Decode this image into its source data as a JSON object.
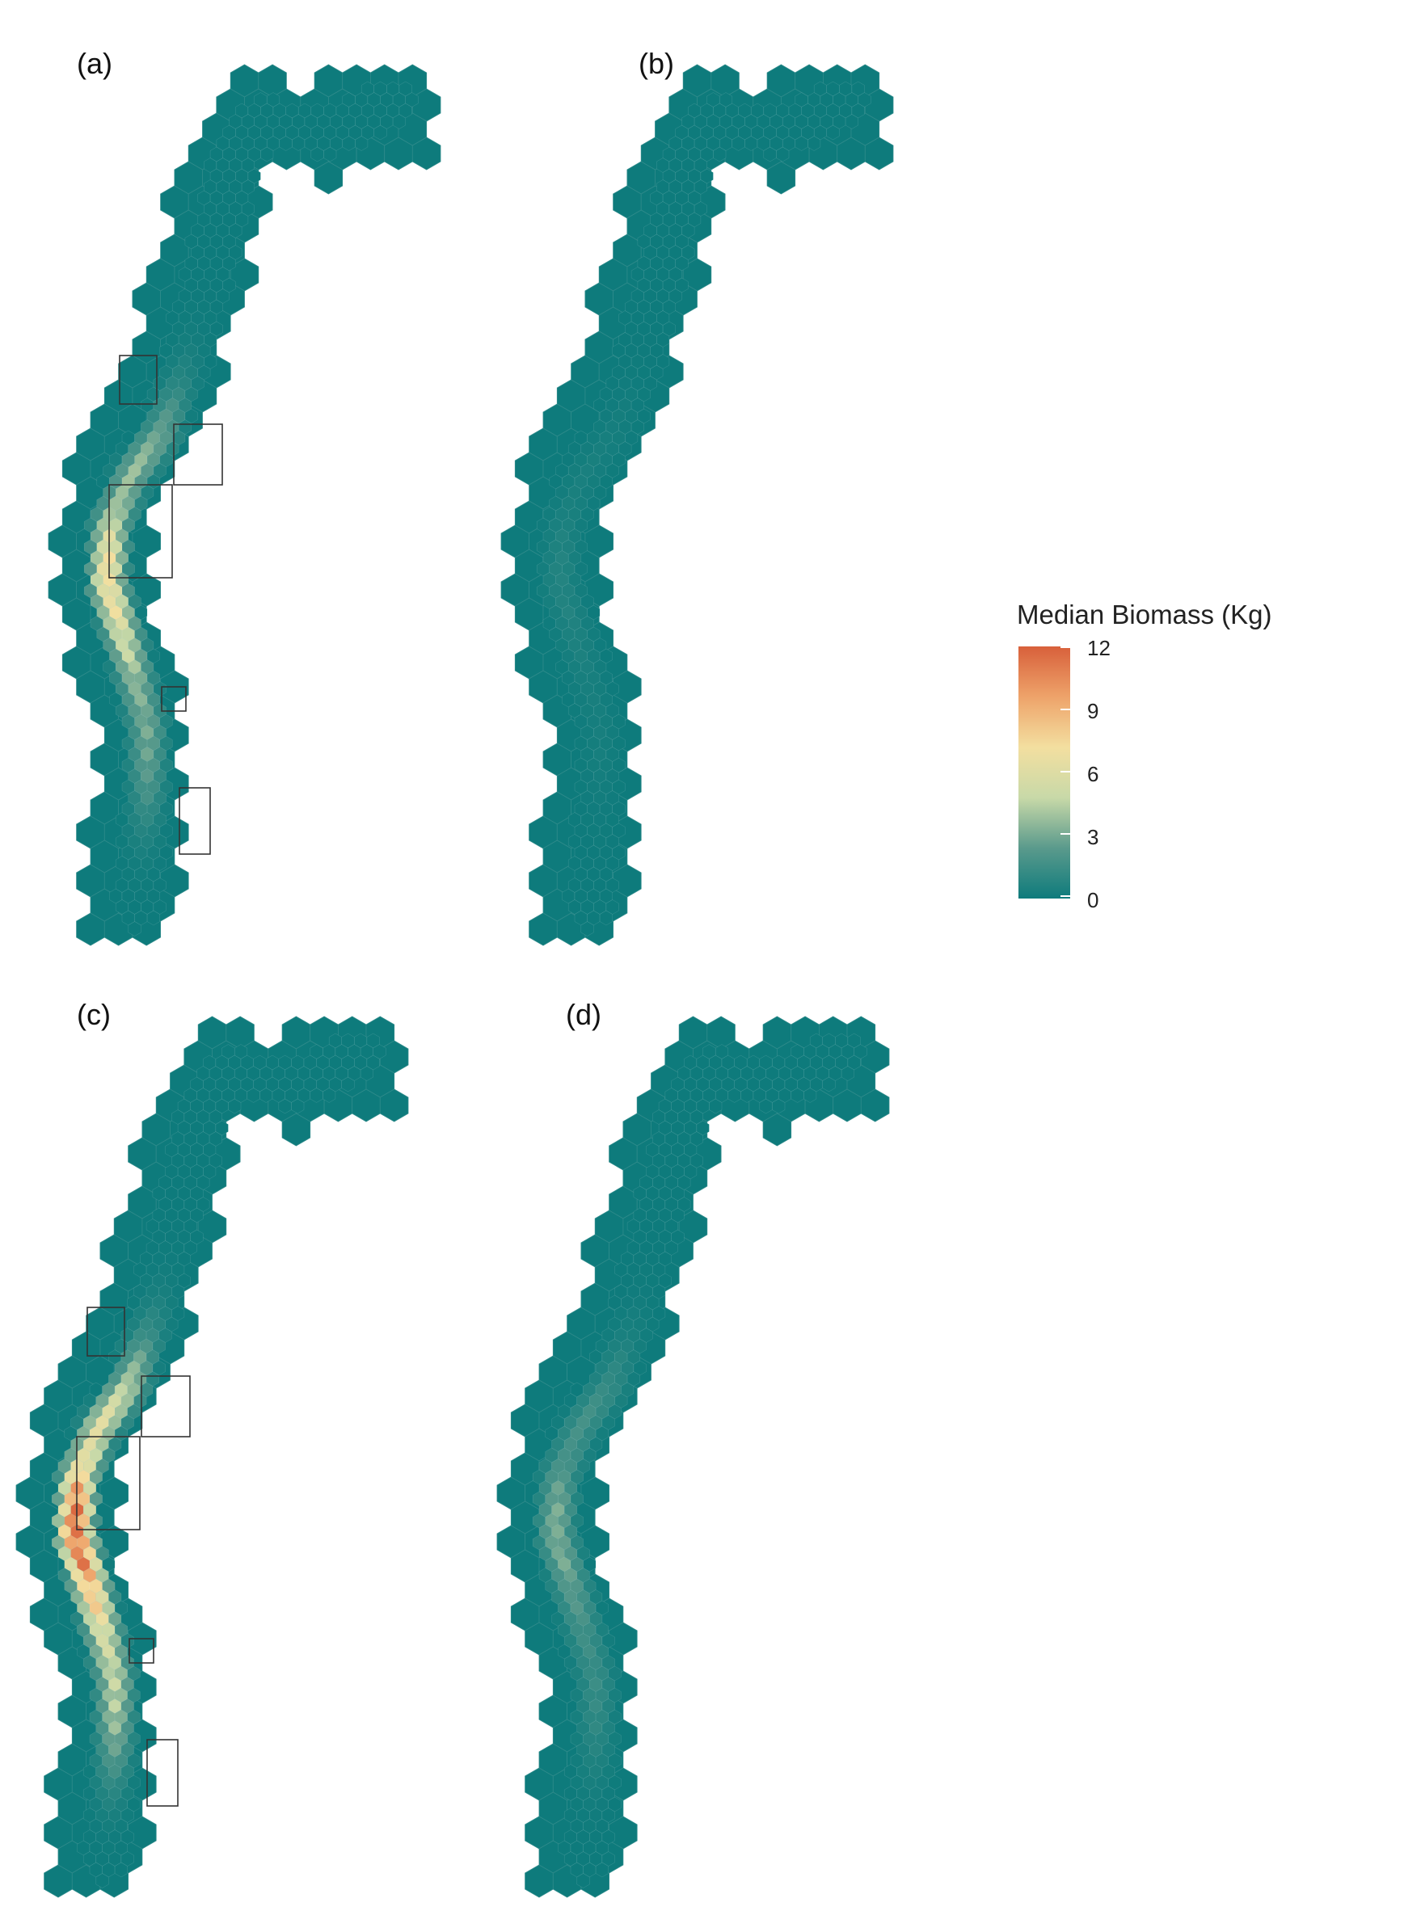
{
  "figure": {
    "panels": [
      {
        "id": "a",
        "label": "(a)",
        "intensity": 0.62,
        "hotspots": true
      },
      {
        "id": "b",
        "label": "(b)",
        "intensity": 0.06,
        "hotspots": false
      },
      {
        "id": "c",
        "label": "(c)",
        "intensity": 1.0,
        "hotspots": true
      },
      {
        "id": "d",
        "label": "(d)",
        "intensity": 0.28,
        "hotspots": false
      }
    ]
  },
  "legend": {
    "title": "Median Biomass (Kg)",
    "ticks": [
      "12",
      "9",
      "6",
      "3",
      "0"
    ],
    "min": 0,
    "max": 12,
    "colors": [
      "#0e7b7c",
      "#5a9a8c",
      "#c8d9a8",
      "#f3dfa0",
      "#eea36a",
      "#d8603b"
    ]
  },
  "colors": {
    "background": "#ffffff",
    "low_hex": "#0e7b7c",
    "outline": "#333333"
  }
}
